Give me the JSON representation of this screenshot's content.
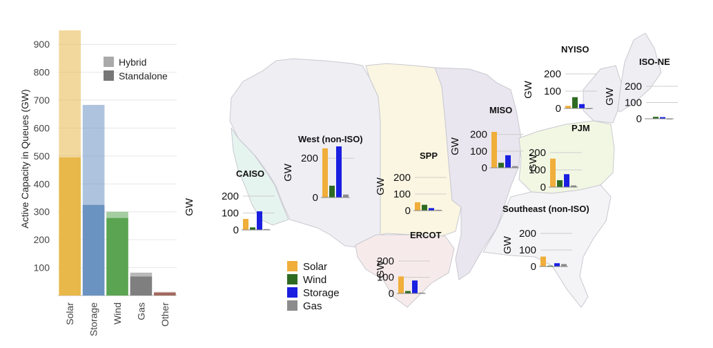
{
  "chart_data": [
    {
      "type": "bar",
      "stacked": true,
      "ylabel": "Active Capacity in Queues (GW)",
      "ylim": [
        0,
        950
      ],
      "yticks": [
        100,
        200,
        300,
        400,
        500,
        600,
        700,
        800,
        900
      ],
      "grid": true,
      "legend_position": "top-right",
      "categories": [
        "Solar",
        "Storage",
        "Wind",
        "Gas",
        "Other"
      ],
      "category_colors": [
        "#E8B84B",
        "#6B93C2",
        "#5BA552",
        "#7F7F7F",
        "#A0685C"
      ],
      "series": [
        {
          "name": "Standalone",
          "values": [
            495,
            325,
            278,
            68,
            10
          ]
        },
        {
          "name": "Hybrid",
          "values": [
            455,
            358,
            22,
            14,
            3
          ]
        }
      ],
      "legend": [
        {
          "name": "Hybrid",
          "color": "#AAAAAA"
        },
        {
          "name": "Standalone",
          "color": "#777777"
        }
      ]
    },
    {
      "type": "bar",
      "subtype": "map-inset-bars",
      "ylabel": "GW",
      "series_names": [
        "Solar",
        "Wind",
        "Storage",
        "Gas"
      ],
      "series_colors": [
        "#F0AE3A",
        "#2E6B22",
        "#1A1FE0",
        "#8C8C8C"
      ],
      "regions": [
        {
          "name": "CAISO",
          "yticks": [
            0,
            100,
            200
          ],
          "values": [
            65,
            15,
            110,
            5
          ]
        },
        {
          "name": "West (non-ISO)",
          "yticks": [
            0,
            200
          ],
          "values": [
            250,
            60,
            260,
            15
          ]
        },
        {
          "name": "SPP",
          "yticks": [
            0,
            100,
            200
          ],
          "values": [
            50,
            35,
            15,
            5
          ]
        },
        {
          "name": "ERCOT",
          "yticks": [
            0,
            100,
            200
          ],
          "values": [
            105,
            15,
            80,
            5
          ]
        },
        {
          "name": "MISO",
          "yticks": [
            0,
            100,
            200
          ],
          "values": [
            215,
            30,
            75,
            10
          ]
        },
        {
          "name": "PJM",
          "yticks": [
            0,
            100,
            200
          ],
          "values": [
            165,
            40,
            75,
            10
          ]
        },
        {
          "name": "NYISO",
          "yticks": [
            0,
            100,
            200
          ],
          "values": [
            15,
            65,
            25,
            0
          ]
        },
        {
          "name": "ISO-NE",
          "yticks": [
            0,
            100,
            200
          ],
          "values": [
            2,
            12,
            10,
            0
          ]
        },
        {
          "name": "Southeast (non-ISO)",
          "yticks": [
            0,
            100,
            200
          ],
          "values": [
            60,
            5,
            20,
            15
          ]
        }
      ]
    }
  ]
}
